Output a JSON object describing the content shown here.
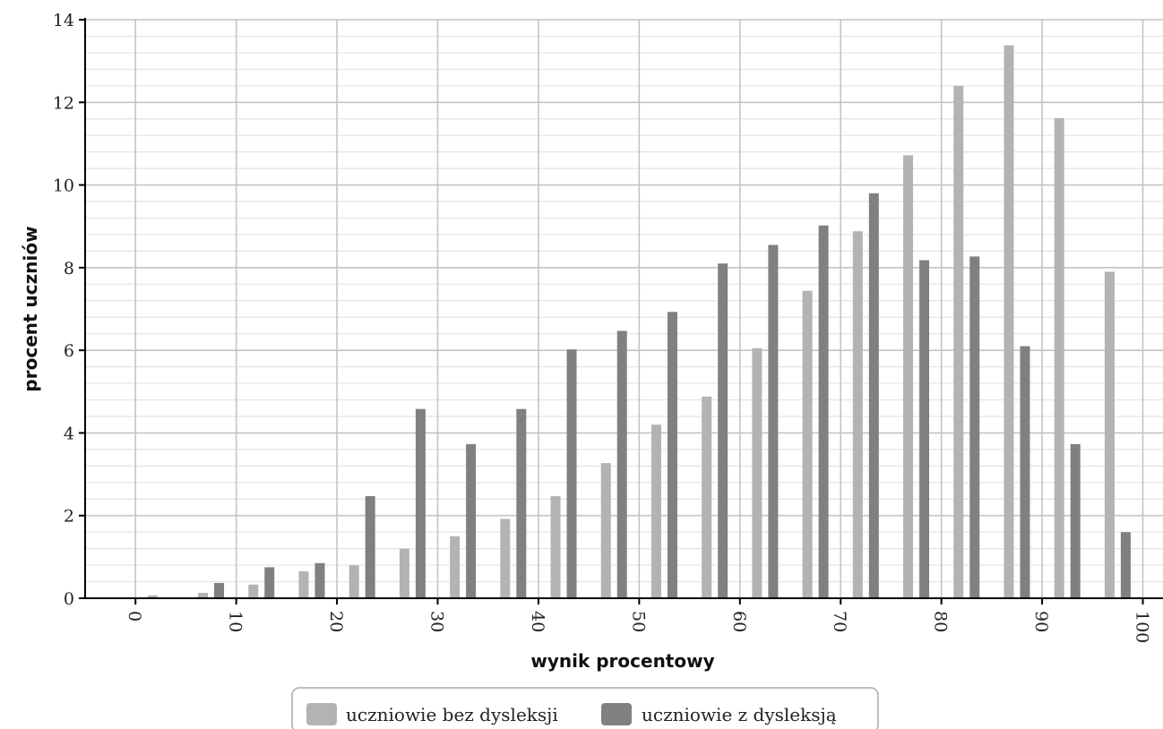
{
  "chart_data": {
    "type": "bar",
    "xlabel": "wynik procentowy",
    "ylabel": "procent uczniów",
    "ylim": [
      0,
      14
    ],
    "y_ticks": [
      0,
      2,
      4,
      6,
      8,
      10,
      12,
      14
    ],
    "x_ticks": [
      0,
      10,
      20,
      30,
      40,
      50,
      60,
      70,
      80,
      90,
      100
    ],
    "xlim": [
      -5,
      102
    ],
    "grid": true,
    "legend_position": "bottom",
    "categories": [
      "0-5",
      "5-10",
      "10-15",
      "15-20",
      "20-25",
      "25-30",
      "30-35",
      "35-40",
      "40-45",
      "45-50",
      "50-55",
      "55-60",
      "60-65",
      "65-70",
      "70-75",
      "75-80",
      "80-85",
      "85-90",
      "90-95",
      "95-100"
    ],
    "series": [
      {
        "name": "uczniowie bez dysleksji",
        "color": "#b3b3b3",
        "values": [
          0.07,
          0.13,
          0.33,
          0.65,
          0.8,
          1.2,
          1.5,
          1.92,
          2.47,
          3.27,
          4.2,
          4.88,
          6.05,
          7.44,
          8.88,
          10.72,
          12.4,
          13.38,
          11.62,
          7.9
        ]
      },
      {
        "name": "uczniowie z dysleksją",
        "color": "#808080",
        "values": [
          0.0,
          0.37,
          0.75,
          0.85,
          2.47,
          4.58,
          3.73,
          4.58,
          6.02,
          6.47,
          6.93,
          8.1,
          8.55,
          9.02,
          9.8,
          8.18,
          8.27,
          6.1,
          3.73,
          1.6
        ]
      }
    ]
  }
}
